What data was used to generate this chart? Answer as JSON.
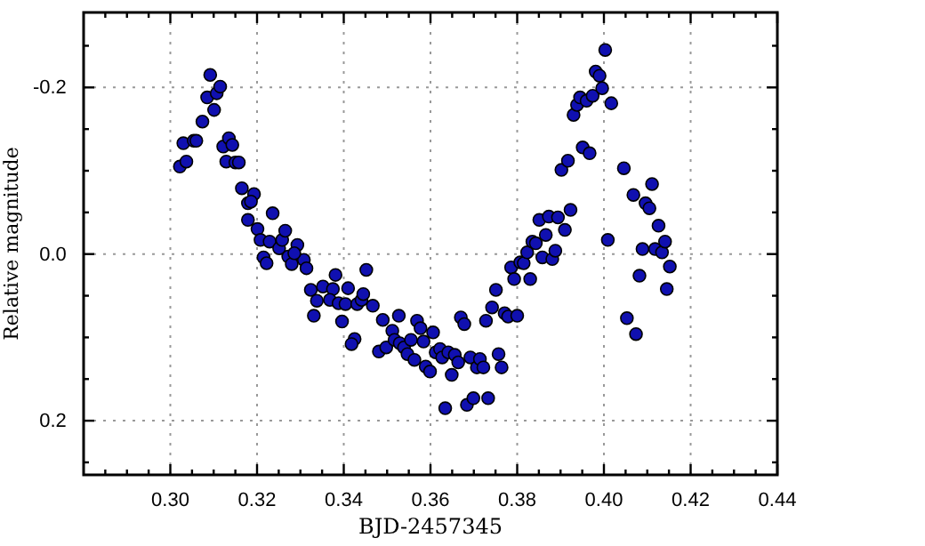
{
  "chart_data": {
    "type": "scatter",
    "xlabel": "BJD-2457345",
    "ylabel": "Relative magnitude",
    "marker": "circle",
    "grid": true,
    "xlim": [
      0.28,
      0.44
    ],
    "xticks": [
      {
        "value": 0.3,
        "label": "0.30"
      },
      0.32,
      0.34,
      0.36,
      0.38,
      {
        "value": 0.4,
        "label": "0.40"
      },
      0.42,
      0.44,
      {
        "value": 0.285,
        "label": null
      },
      {
        "value": 0.29,
        "label": null
      },
      {
        "value": 0.295,
        "label": null
      },
      {
        "value": 0.305,
        "label": null
      },
      {
        "value": 0.31,
        "label": null
      },
      {
        "value": 0.315,
        "label": null
      },
      {
        "value": 0.325,
        "label": null
      },
      {
        "value": 0.33,
        "label": null
      },
      {
        "value": 0.335,
        "label": null
      },
      {
        "value": 0.345,
        "label": null
      },
      {
        "value": 0.35,
        "label": null
      },
      {
        "value": 0.355,
        "label": null
      },
      {
        "value": 0.365,
        "label": null
      },
      {
        "value": 0.37,
        "label": null
      },
      {
        "value": 0.375,
        "label": null
      },
      {
        "value": 0.385,
        "label": null
      },
      {
        "value": 0.39,
        "label": null
      },
      {
        "value": 0.395,
        "label": null
      },
      {
        "value": 0.405,
        "label": null
      },
      {
        "value": 0.41,
        "label": null
      },
      {
        "value": 0.415,
        "label": null
      },
      {
        "value": 0.425,
        "label": null
      },
      {
        "value": 0.43,
        "label": null
      },
      {
        "value": 0.435,
        "label": null
      }
    ],
    "ylim": [
      0.265,
      -0.29
    ],
    "yticks": [
      -0.2,
      {
        "value": 0,
        "label": "0.0"
      },
      0.2,
      {
        "value": -0.25,
        "label": null
      },
      {
        "value": -0.15,
        "label": null
      },
      {
        "value": -0.1,
        "label": null
      },
      {
        "value": -0.05,
        "label": null
      },
      {
        "value": 0.05,
        "label": null
      },
      {
        "value": 0.1,
        "label": null
      },
      {
        "value": 0.15,
        "label": null
      },
      {
        "value": 0.25,
        "label": null
      }
    ],
    "series": [
      {
        "color": "#1010b0",
        "x": [
          0.3022,
          0.3037,
          0.303,
          0.3054,
          0.306,
          0.3074,
          0.3085,
          0.3092,
          0.3101,
          0.3107,
          0.3115,
          0.3122,
          0.3135,
          0.3143,
          0.3129,
          0.315,
          0.3158,
          0.3165,
          0.3179,
          0.3193,
          0.3186,
          0.3179,
          0.3201,
          0.3208,
          0.3236,
          0.3229,
          0.3251,
          0.3258,
          0.3265,
          0.3215,
          0.3222,
          0.3272,
          0.3293,
          0.328,
          0.3308,
          0.3286,
          0.3324,
          0.3352,
          0.3338,
          0.3331,
          0.3314,
          0.3375,
          0.3381,
          0.3368,
          0.3388,
          0.3404,
          0.341,
          0.3396,
          0.3425,
          0.3418,
          0.3431,
          0.3441,
          0.3445,
          0.3452,
          0.3467,
          0.349,
          0.3481,
          0.3498,
          0.3512,
          0.3527,
          0.3517,
          0.3529,
          0.3539,
          0.3547,
          0.3563,
          0.3555,
          0.3569,
          0.3577,
          0.3584,
          0.3589,
          0.3599,
          0.3606,
          0.3612,
          0.3622,
          0.3627,
          0.3641,
          0.3634,
          0.3649,
          0.3656,
          0.3664,
          0.367,
          0.3678,
          0.3692,
          0.3684,
          0.3699,
          0.3707,
          0.3714,
          0.3722,
          0.3733,
          0.3728,
          0.3757,
          0.3764,
          0.3742,
          0.3751,
          0.3771,
          0.3779,
          0.38,
          0.3786,
          0.3793,
          0.3807,
          0.3815,
          0.3823,
          0.383,
          0.3835,
          0.3843,
          0.3858,
          0.3866,
          0.3881,
          0.3888,
          0.3851,
          0.3873,
          0.3894,
          0.391,
          0.3923,
          0.4009,
          0.3902,
          0.3917,
          0.3951,
          0.3967,
          0.393,
          0.3938,
          0.3945,
          0.396,
          0.3974,
          0.3981,
          0.399,
          0.3996,
          0.4003,
          0.4017,
          0.4046,
          0.4068,
          0.4053,
          0.4074,
          0.4082,
          0.4089,
          0.4096,
          0.4105,
          0.4111,
          0.4118,
          0.4126,
          0.4134,
          0.4141,
          0.4145,
          0.4152
        ],
        "values": [
          -0.105,
          -0.111,
          -0.133,
          -0.136,
          -0.136,
          -0.159,
          -0.188,
          -0.215,
          -0.173,
          -0.193,
          -0.201,
          -0.129,
          -0.139,
          -0.131,
          -0.111,
          -0.11,
          -0.11,
          -0.079,
          -0.061,
          -0.072,
          -0.063,
          -0.041,
          -0.03,
          -0.017,
          -0.049,
          -0.015,
          -0.007,
          -0.017,
          -0.028,
          0.004,
          0.011,
          0.003,
          -0.011,
          0.012,
          0.007,
          -0.001,
          0.043,
          0.039,
          0.056,
          0.074,
          0.017,
          0.042,
          0.025,
          0.055,
          0.059,
          0.06,
          0.041,
          0.081,
          0.102,
          0.108,
          0.06,
          0.055,
          0.048,
          0.019,
          0.062,
          0.079,
          0.117,
          0.112,
          0.092,
          0.074,
          0.103,
          0.107,
          0.112,
          0.12,
          0.127,
          0.103,
          0.08,
          0.089,
          0.105,
          0.135,
          0.141,
          0.094,
          0.118,
          0.114,
          0.124,
          0.118,
          0.185,
          0.145,
          0.121,
          0.13,
          0.076,
          0.084,
          0.124,
          0.181,
          0.173,
          0.136,
          0.126,
          0.136,
          0.173,
          0.08,
          0.12,
          0.136,
          0.064,
          0.043,
          0.071,
          0.075,
          0.074,
          0.016,
          0.03,
          0.01,
          0.011,
          -0.002,
          0.03,
          -0.015,
          -0.013,
          0.004,
          -0.023,
          0.006,
          -0.004,
          -0.041,
          -0.045,
          -0.044,
          -0.029,
          -0.053,
          -0.017,
          -0.101,
          -0.112,
          -0.128,
          -0.121,
          -0.167,
          -0.179,
          -0.188,
          -0.184,
          -0.19,
          -0.219,
          -0.214,
          -0.199,
          -0.245,
          -0.181,
          -0.103,
          -0.071,
          0.077,
          0.096,
          0.026,
          -0.006,
          -0.061,
          -0.055,
          -0.084,
          -0.006,
          -0.034,
          -0.002,
          -0.015,
          0.042,
          0.015
        ]
      }
    ]
  }
}
